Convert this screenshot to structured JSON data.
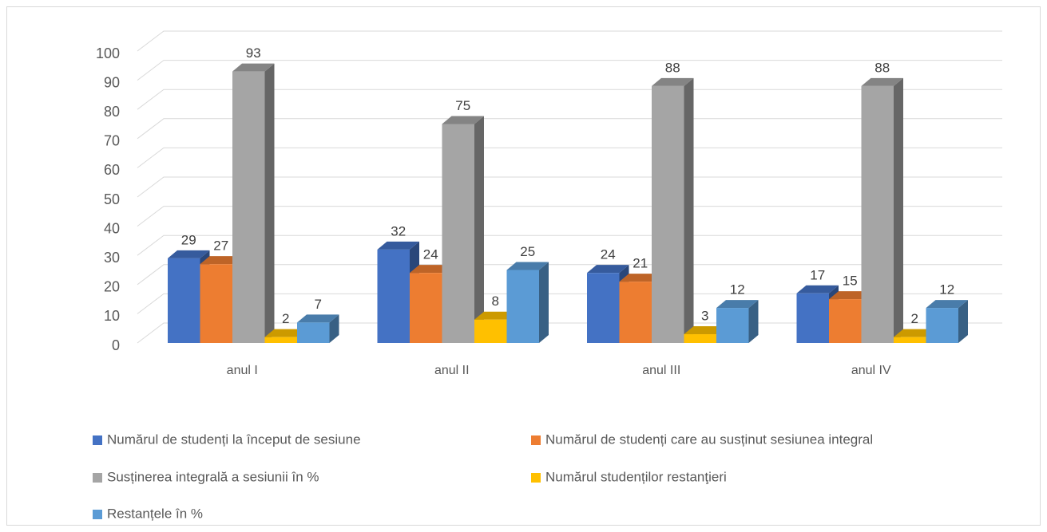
{
  "chart_data": {
    "type": "bar3d",
    "categories": [
      "anul I",
      "anul II",
      "anul III",
      "anul IV"
    ],
    "series": [
      {
        "name": "Numărul de studenți la început de sesiune",
        "color": "#4472c4",
        "values": [
          29,
          32,
          24,
          17
        ]
      },
      {
        "name": "Numărul de studenți care au susținut sesiunea integral",
        "color": "#ed7d31",
        "values": [
          27,
          24,
          21,
          15
        ]
      },
      {
        "name": "Susținerea integrală a sesiunii în %",
        "color": "#a5a5a5",
        "values": [
          93,
          75,
          88,
          88
        ]
      },
      {
        "name": "Numărul studenților restanţieri",
        "color": "#ffc000",
        "values": [
          2,
          8,
          3,
          2
        ]
      },
      {
        "name": "Restanțele în %",
        "color": "#5b9bd5",
        "values": [
          7,
          25,
          12,
          12
        ]
      }
    ],
    "ylim": [
      0,
      100
    ],
    "yticks": [
      0,
      10,
      20,
      30,
      40,
      50,
      60,
      70,
      80,
      90,
      100
    ],
    "grid": true,
    "legend": "bottom"
  }
}
